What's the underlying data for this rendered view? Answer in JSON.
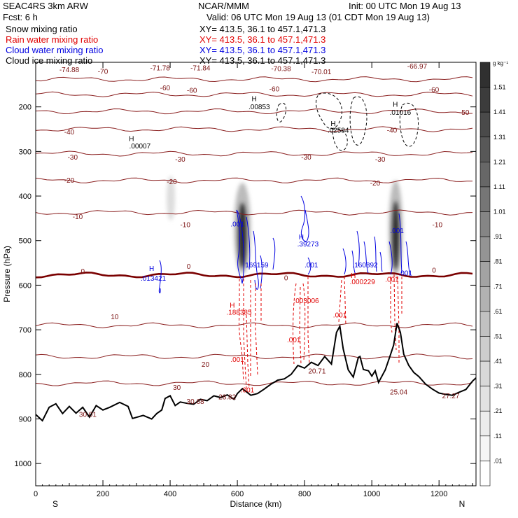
{
  "header": {
    "model": "SEAC4RS  3km ARW",
    "center": "NCAR/MMM",
    "init": "Init: 00 UTC Mon 19 Aug 13",
    "fcst": "Fcst:     6 h",
    "valid": "Valid: 06 UTC Mon 19 Aug 13 (01 CDT Mon 19 Aug 13)",
    "fields": [
      {
        "name": "Snow mixing ratio",
        "xy": "XY= 413.5, 36.1 to 457.1,471.3",
        "color": "#000000"
      },
      {
        "name": "Rain water mixing ratio",
        "xy": "XY= 413.5, 36.1 to 457.1,471.3",
        "color": "#e00000"
      },
      {
        "name": "Cloud water mixing ratio",
        "xy": "XY= 413.5, 36.1 to 457.1,471.3",
        "color": "#0000e0"
      },
      {
        "name": "Cloud ice mixing ratio",
        "xy": "XY= 413.5, 36.1 to 457.1,471.3",
        "color": "#000000"
      }
    ]
  },
  "chart_data": {
    "type": "contour-cross-section",
    "xlabel": "Distance (km)",
    "ylabel": "Pressure (hPa)",
    "xlim": [
      0,
      1310
    ],
    "ylim": [
      1050,
      100
    ],
    "x_ticks": [
      0,
      200,
      400,
      600,
      800,
      1000,
      1200
    ],
    "y_ticks": [
      200,
      300,
      400,
      500,
      600,
      700,
      800,
      900,
      1000
    ],
    "endpoints": {
      "left": "S",
      "right": "N"
    },
    "colorbar": {
      "unit": "g kg⁻¹",
      "labels": [
        "1.51",
        "1.41",
        "1.31",
        "1.21",
        "1.11",
        "1.01",
        ".91",
        ".81",
        ".71",
        ".61",
        ".51",
        ".41",
        ".31",
        ".21",
        ".11",
        ".01"
      ],
      "shades": [
        "#303030",
        "#3c3c3c",
        "#4a4a4a",
        "#585858",
        "#676767",
        "#767676",
        "#858585",
        "#949494",
        "#a3a3a3",
        "#b2b2b2",
        "#c1c1c1",
        "#cdcdcd",
        "#d8d8d8",
        "#e2e2e2",
        "#ececec",
        "#f6f6f6",
        "#ffffff"
      ]
    },
    "isotherms": [
      {
        "label": "-70",
        "p": 138
      },
      {
        "label": "-60",
        "p": 172
      },
      {
        "label": "-50",
        "p": 210
      },
      {
        "label": "-40",
        "p": 250
      },
      {
        "label": "-30",
        "p": 305
      },
      {
        "label": "-20",
        "p": 365
      },
      {
        "label": "-10",
        "p": 437
      },
      {
        "label": "0",
        "p": 577
      },
      {
        "label": "10",
        "p": 690
      },
      {
        "label": "20",
        "p": 760
      },
      {
        "label": "30",
        "p": 820
      }
    ],
    "temperature_labels": [
      {
        "text": "-74.88",
        "x": 100,
        "p": 122
      },
      {
        "text": "-71.78",
        "x": 370,
        "p": 118
      },
      {
        "text": "-71.84",
        "x": 490,
        "p": 118
      },
      {
        "text": "-70.38",
        "x": 730,
        "p": 120
      },
      {
        "text": "-70.01",
        "x": 850,
        "p": 127
      },
      {
        "text": "-66.97",
        "x": 1135,
        "p": 114
      },
      {
        "text": "30.01",
        "x": 155,
        "p": 895
      },
      {
        "text": "30.68",
        "x": 475,
        "p": 866
      },
      {
        "text": "28.82",
        "x": 570,
        "p": 856
      },
      {
        "text": "20.71",
        "x": 837,
        "p": 798
      },
      {
        "text": "25.04",
        "x": 1080,
        "p": 845
      },
      {
        "text": "27.27",
        "x": 1235,
        "p": 854
      }
    ],
    "contour_labels": [
      {
        "text": "-70",
        "x": 200,
        "p": 126,
        "color": "#7a1010"
      },
      {
        "text": "-60",
        "x": 385,
        "p": 163,
        "color": "#7a1010"
      },
      {
        "text": "-60",
        "x": 465,
        "p": 168,
        "color": "#7a1010"
      },
      {
        "text": "-60",
        "x": 710,
        "p": 165,
        "color": "#7a1010"
      },
      {
        "text": "-60",
        "x": 1185,
        "p": 167,
        "color": "#7a1010"
      },
      {
        "text": "-50",
        "x": 1275,
        "p": 218,
        "color": "#7a1010"
      },
      {
        "text": "-40",
        "x": 100,
        "p": 262,
        "color": "#7a1010"
      },
      {
        "text": "-40",
        "x": 1060,
        "p": 258,
        "color": "#7a1010"
      },
      {
        "text": "-30",
        "x": 110,
        "p": 318,
        "color": "#7a1010"
      },
      {
        "text": "-30",
        "x": 430,
        "p": 323,
        "color": "#7a1010"
      },
      {
        "text": "-30",
        "x": 805,
        "p": 318,
        "color": "#7a1010"
      },
      {
        "text": "-30",
        "x": 1025,
        "p": 323,
        "color": "#7a1010"
      },
      {
        "text": "-20",
        "x": 100,
        "p": 370,
        "color": "#7a1010"
      },
      {
        "text": "-20",
        "x": 405,
        "p": 373,
        "color": "#7a1010"
      },
      {
        "text": "-20",
        "x": 1010,
        "p": 376,
        "color": "#7a1010"
      },
      {
        "text": "-10",
        "x": 125,
        "p": 452,
        "color": "#7a1010"
      },
      {
        "text": "-10",
        "x": 445,
        "p": 470,
        "color": "#7a1010"
      },
      {
        "text": "-10",
        "x": 1195,
        "p": 470,
        "color": "#7a1010"
      },
      {
        "text": "0",
        "x": 140,
        "p": 574,
        "color": "#7a1010"
      },
      {
        "text": "0",
        "x": 455,
        "p": 563,
        "color": "#7a1010"
      },
      {
        "text": "0",
        "x": 745,
        "p": 589,
        "color": "#7a1010"
      },
      {
        "text": "0",
        "x": 1185,
        "p": 572,
        "color": "#7a1010"
      },
      {
        "text": "10",
        "x": 235,
        "p": 676,
        "color": "#7a1010"
      },
      {
        "text": "20",
        "x": 505,
        "p": 783,
        "color": "#7a1010"
      },
      {
        "text": "30",
        "x": 420,
        "p": 835,
        "color": "#7a1010"
      },
      {
        "text": "H",
        "x": 285,
        "p": 277,
        "color": "#000000"
      },
      {
        "text": ".00007",
        "x": 310,
        "p": 293,
        "color": "#000000"
      },
      {
        "text": "H",
        "x": 650,
        "p": 187,
        "color": "#000000"
      },
      {
        "text": ".00853",
        "x": 665,
        "p": 205,
        "color": "#000000"
      },
      {
        "text": "H",
        "x": 885,
        "p": 243,
        "color": "#000000"
      },
      {
        "text": ".02584",
        "x": 900,
        "p": 258,
        "color": "#000000"
      },
      {
        "text": "H",
        "x": 1070,
        "p": 200,
        "color": "#000000"
      },
      {
        "text": ".01016",
        "x": 1085,
        "p": 218,
        "color": "#000000"
      },
      {
        "text": "H",
        "x": 345,
        "p": 568,
        "color": "#0000e0"
      },
      {
        "text": ".013421",
        "x": 350,
        "p": 590,
        "color": "#0000e0"
      },
      {
        "text": ".001",
        "x": 600,
        "p": 468,
        "color": "#0000e0"
      },
      {
        "text": "169159",
        "x": 658,
        "p": 560,
        "color": "#0000e0"
      },
      {
        "text": "H",
        "x": 790,
        "p": 497,
        "color": "#0000e0"
      },
      {
        "text": ".39273",
        "x": 810,
        "p": 513,
        "color": "#0000e0"
      },
      {
        "text": ".001",
        "x": 820,
        "p": 560,
        "color": "#0000e0"
      },
      {
        "text": ".160892",
        "x": 980,
        "p": 560,
        "color": "#0000e0"
      },
      {
        "text": ".001",
        "x": 1075,
        "p": 483,
        "color": "#0000e0"
      },
      {
        "text": ".001",
        "x": 1100,
        "p": 578,
        "color": "#0000e0"
      },
      {
        "text": "H",
        "x": 585,
        "p": 650,
        "color": "#e00000"
      },
      {
        "text": ".188385",
        "x": 605,
        "p": 666,
        "color": "#e00000"
      },
      {
        "text": ".003006",
        "x": 805,
        "p": 640,
        "color": "#e00000"
      },
      {
        "text": "H",
        "x": 945,
        "p": 584,
        "color": "#e00000"
      },
      {
        "text": ".000229",
        "x": 972,
        "p": 598,
        "color": "#e00000"
      },
      {
        "text": ".001",
        "x": 905,
        "p": 672,
        "color": "#e00000"
      },
      {
        "text": ".001",
        "x": 768,
        "p": 728,
        "color": "#e00000"
      },
      {
        "text": ".001",
        "x": 600,
        "p": 772,
        "color": "#e00000"
      },
      {
        "text": ".001",
        "x": 630,
        "p": 840,
        "color": "#e00000"
      },
      {
        "text": ".001",
        "x": 1060,
        "p": 592,
        "color": "#e00000"
      }
    ],
    "terrain_surface_hpa": [
      [
        0,
        890
      ],
      [
        20,
        904
      ],
      [
        40,
        874
      ],
      [
        60,
        866
      ],
      [
        80,
        888
      ],
      [
        100,
        872
      ],
      [
        120,
        887
      ],
      [
        140,
        874
      ],
      [
        160,
        896
      ],
      [
        180,
        870
      ],
      [
        200,
        880
      ],
      [
        220,
        874
      ],
      [
        250,
        863
      ],
      [
        275,
        872
      ],
      [
        288,
        899
      ],
      [
        320,
        892
      ],
      [
        345,
        900
      ],
      [
        360,
        888
      ],
      [
        375,
        880
      ],
      [
        385,
        854
      ],
      [
        400,
        848
      ],
      [
        415,
        870
      ],
      [
        430,
        862
      ],
      [
        450,
        865
      ],
      [
        470,
        867
      ],
      [
        490,
        856
      ],
      [
        510,
        859
      ],
      [
        530,
        848
      ],
      [
        550,
        852
      ],
      [
        570,
        846
      ],
      [
        590,
        856
      ],
      [
        600,
        843
      ],
      [
        615,
        832
      ],
      [
        640,
        847
      ],
      [
        660,
        843
      ],
      [
        680,
        833
      ],
      [
        700,
        822
      ],
      [
        720,
        813
      ],
      [
        740,
        810
      ],
      [
        760,
        800
      ],
      [
        780,
        780
      ],
      [
        800,
        786
      ],
      [
        820,
        773
      ],
      [
        840,
        780
      ],
      [
        860,
        760
      ],
      [
        880,
        777
      ],
      [
        895,
        706
      ],
      [
        905,
        692
      ],
      [
        915,
        743
      ],
      [
        930,
        790
      ],
      [
        945,
        806
      ],
      [
        960,
        762
      ],
      [
        965,
        760
      ],
      [
        975,
        789
      ],
      [
        990,
        792
      ],
      [
        1000,
        804
      ],
      [
        1010,
        792
      ],
      [
        1020,
        818
      ],
      [
        1040,
        790
      ],
      [
        1055,
        757
      ],
      [
        1065,
        734
      ],
      [
        1075,
        685
      ],
      [
        1085,
        706
      ],
      [
        1095,
        755
      ],
      [
        1110,
        780
      ],
      [
        1125,
        796
      ],
      [
        1140,
        805
      ],
      [
        1160,
        822
      ],
      [
        1180,
        833
      ],
      [
        1200,
        842
      ],
      [
        1220,
        845
      ],
      [
        1240,
        847
      ],
      [
        1260,
        840
      ],
      [
        1280,
        834
      ],
      [
        1300,
        815
      ],
      [
        1310,
        808
      ]
    ],
    "snow_shading": [
      {
        "x": 402,
        "p0": 355,
        "p1": 455,
        "w": 12,
        "max": 0.11
      },
      {
        "x": 615,
        "p0": 370,
        "p1": 575,
        "w": 24,
        "max": 1.51
      },
      {
        "x": 1071,
        "p0": 365,
        "p1": 580,
        "w": 20,
        "max": 1.51
      }
    ]
  }
}
